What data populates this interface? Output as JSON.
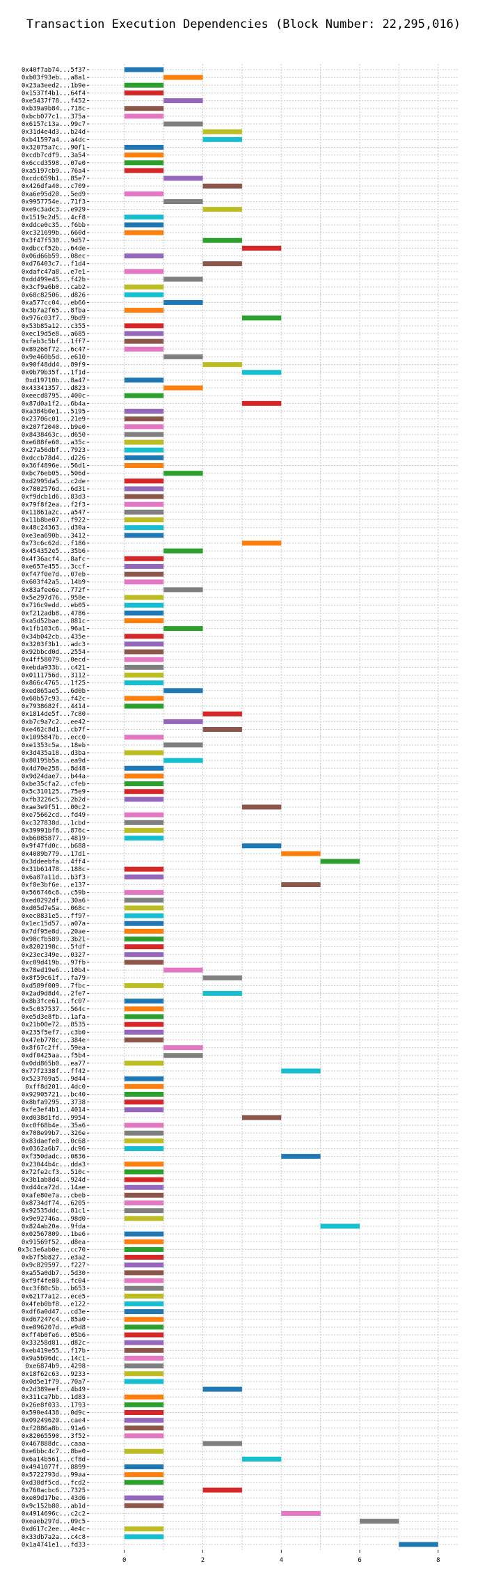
{
  "chart_data": {
    "type": "bar",
    "orientation": "horizontal",
    "title": "Transaction Execution Dependencies (Block Number: 22,295,016)",
    "xlabel": "",
    "ylabel": "",
    "xlim": [
      -0.9,
      8.5
    ],
    "xticks": [
      0,
      2,
      4,
      6,
      8
    ],
    "grid": true,
    "bar_colors": [
      "#1f77b4",
      "#ff7f0e",
      "#2ca02c",
      "#d62728",
      "#9467bd",
      "#8c564b",
      "#e377c2",
      "#7f7f7f",
      "#bcbd22",
      "#17becf"
    ],
    "bars": [
      [
        "0x40f7ab74...5f37",
        0,
        1
      ],
      [
        "0xb03f93eb...a8a1",
        1,
        2
      ],
      [
        "0x23a3eed2...1b9e",
        0,
        1
      ],
      [
        "0x1537f4b1...64f4",
        0,
        1
      ],
      [
        "0xe5437f78...f452",
        1,
        2
      ],
      [
        "0xb39a9b84...718c",
        0,
        1
      ],
      [
        "0xbcb077c1...375a",
        0,
        1
      ],
      [
        "0x6157c13a...99c7",
        1,
        2
      ],
      [
        "0x31d4e4d3...b24d",
        2,
        3
      ],
      [
        "0xb41597a4...a4dc",
        2,
        3
      ],
      [
        "0x32075a7c...90f1",
        0,
        1
      ],
      [
        "0xcdb7cdf9...3a54",
        0,
        1
      ],
      [
        "0x6ccd3598...07e0",
        0,
        1
      ],
      [
        "0xa5197cb9...76a4",
        0,
        1
      ],
      [
        "0xcdc659b1...85e7",
        1,
        2
      ],
      [
        "0x426dfa40...c709",
        2,
        3
      ],
      [
        "0xa6e95d20...5ed9",
        0,
        1
      ],
      [
        "0x9957754e...71f3",
        1,
        2
      ],
      [
        "0xe9c3adc3...e929",
        2,
        3
      ],
      [
        "0x1519c2d5...4cf8",
        0,
        1
      ],
      [
        "0xddce0c35...f6bb",
        0,
        1
      ],
      [
        "0xc321699b...660d",
        0,
        1
      ],
      [
        "0x3f47f530...9d57",
        2,
        3
      ],
      [
        "0xdbccf52b...64de",
        3,
        4
      ],
      [
        "0x06d66b59...08ec",
        0,
        1
      ],
      [
        "0xd76403c7...f1d4",
        2,
        3
      ],
      [
        "0xdafc47a8...e7e1",
        0,
        1
      ],
      [
        "0xdd499e45...f42b",
        1,
        2
      ],
      [
        "0x3cf9a6b0...cab2",
        0,
        1
      ],
      [
        "0x68c82506...d826",
        0,
        1
      ],
      [
        "0xa577cc04...eb66",
        1,
        2
      ],
      [
        "0x3b7a2f65...8fba",
        0,
        1
      ],
      [
        "0x976c03f7...9bd9",
        3,
        4
      ],
      [
        "0x53b85a12...c355",
        0,
        1
      ],
      [
        "0xec19d5e8...a685",
        0,
        1
      ],
      [
        "0xfeb3c5bf...1ff7",
        0,
        1
      ],
      [
        "0x89266f72...6c47",
        0,
        1
      ],
      [
        "0x9e460b5d...e610",
        1,
        2
      ],
      [
        "0x90f48dd4...89f9",
        2,
        3
      ],
      [
        "0x0b79b35f...1f1d",
        3,
        4
      ],
      [
        "0xd19710b...8a47",
        0,
        1
      ],
      [
        "0x43341357...d823",
        1,
        2
      ],
      [
        "0xeecd8795...400c",
        0,
        1
      ],
      [
        "0x87d0a1f2...6b4a",
        3,
        4
      ],
      [
        "0xa384b0e1...5195",
        0,
        1
      ],
      [
        "0x23706c01...21e9",
        0,
        1
      ],
      [
        "0x207f2040...b9e0",
        0,
        1
      ],
      [
        "0x8438463c...d650",
        0,
        1
      ],
      [
        "0xe688fe60...a35c",
        0,
        1
      ],
      [
        "0x27a56dbf...7923",
        0,
        1
      ],
      [
        "0xdccb78d4...d226",
        0,
        1
      ],
      [
        "0x36f4896e...56d1",
        0,
        1
      ],
      [
        "0xbc76eb05...506d",
        1,
        2
      ],
      [
        "0xd2995da5...c2de",
        0,
        1
      ],
      [
        "0x7802576d...6d31",
        0,
        1
      ],
      [
        "0xf9dcb1d6...83d3",
        0,
        1
      ],
      [
        "0x79f8f2ea...f2f3",
        0,
        1
      ],
      [
        "0x11861a2c...a547",
        0,
        1
      ],
      [
        "0x11b8be07...f922",
        0,
        1
      ],
      [
        "0x48c24363...d30a",
        0,
        1
      ],
      [
        "0xe3ea690b...3412",
        0,
        1
      ],
      [
        "0x73c6c62d...f186",
        3,
        4
      ],
      [
        "0x454352e5...35b6",
        1,
        2
      ],
      [
        "0x4f36acf4...8afc",
        0,
        1
      ],
      [
        "0xe657e455...3ccf",
        0,
        1
      ],
      [
        "0xf47f0e7d...07eb",
        0,
        1
      ],
      [
        "0x603f42a5...14b9",
        0,
        1
      ],
      [
        "0x83afee6e...772f",
        1,
        2
      ],
      [
        "0x5e297d76...958e",
        0,
        1
      ],
      [
        "0x716c9edd...eb05",
        0,
        1
      ],
      [
        "0xf212adb8...4786",
        0,
        1
      ],
      [
        "0xa5d52bae...881c",
        0,
        1
      ],
      [
        "0x1fb103c6...96a1",
        1,
        2
      ],
      [
        "0x34b042cb...435e",
        0,
        1
      ],
      [
        "0x3203f3b1...adc3",
        0,
        1
      ],
      [
        "0x92bbcd0d...2554",
        0,
        1
      ],
      [
        "0x4ff58079...0ecd",
        0,
        1
      ],
      [
        "0xebda933b...c421",
        0,
        1
      ],
      [
        "0x0111756d...3112",
        0,
        1
      ],
      [
        "0x866c4765...1f25",
        0,
        1
      ],
      [
        "0xed865ae5...6d0b",
        1,
        2
      ],
      [
        "0x60b57c93...f42c",
        0,
        1
      ],
      [
        "0x7938682f...4414",
        0,
        1
      ],
      [
        "0x1814de5f...7c80",
        2,
        3
      ],
      [
        "0xb7c9a7c2...ee42",
        1,
        2
      ],
      [
        "0xe462c8d1...cb7f",
        2,
        3
      ],
      [
        "0x1095847b...ecc0",
        0,
        1
      ],
      [
        "0xe1353c5a...18eb",
        1,
        2
      ],
      [
        "0x3d435a18...d3ba",
        0,
        1
      ],
      [
        "0x80195b5a...ea9d",
        1,
        2
      ],
      [
        "0x4d70e258...8d48",
        0,
        1
      ],
      [
        "0x9d24dae7...b44a",
        0,
        1
      ],
      [
        "0xbe35cfa2...cfeb",
        0,
        1
      ],
      [
        "0x5c310125...75e9",
        0,
        1
      ],
      [
        "0xfb3226c5...2b2d",
        0,
        1
      ],
      [
        "0xae3e9f51...00c2",
        3,
        4
      ],
      [
        "0xe75662cd...fd49",
        0,
        1
      ],
      [
        "0xc327838d...1cbd",
        0,
        1
      ],
      [
        "0x39991bf8...876c",
        0,
        1
      ],
      [
        "0xb6085877...4819",
        0,
        1
      ],
      [
        "0x9f47fd0c...b688",
        3,
        4
      ],
      [
        "0x4089b779...17d1",
        4,
        5
      ],
      [
        "0x3ddeebfa...4ff4",
        5,
        6
      ],
      [
        "0x31b61478...188c",
        0,
        1
      ],
      [
        "0x6a87a11d...b3f3",
        0,
        1
      ],
      [
        "0xf8e3bf6e...e137",
        4,
        5
      ],
      [
        "0x566746c8...c59b",
        0,
        1
      ],
      [
        "0xed0292df...30a6",
        0,
        1
      ],
      [
        "0xd05d7e5a...068c",
        0,
        1
      ],
      [
        "0xec8831e5...ff97",
        0,
        1
      ],
      [
        "0x1ec15d57...a07a",
        0,
        1
      ],
      [
        "0x7df95e8d...20ae",
        0,
        1
      ],
      [
        "0x98cfb589...3b21",
        0,
        1
      ],
      [
        "0x8202198c...5fdf",
        0,
        1
      ],
      [
        "0x23ec349e...0327",
        0,
        1
      ],
      [
        "0xc09d419b...97fb",
        0,
        1
      ],
      [
        "0x78ed19e6...10b4",
        1,
        2
      ],
      [
        "0x8f59c61f...fa79",
        2,
        3
      ],
      [
        "0xd589f009...7fbc",
        0,
        1
      ],
      [
        "0x2ad9d8d4...2fe7",
        2,
        3
      ],
      [
        "0x8b3fce61...fc07",
        0,
        1
      ],
      [
        "0x5c037537...564c",
        0,
        1
      ],
      [
        "0xe5d3e8fb...1afa",
        0,
        1
      ],
      [
        "0x21b00e72...8535",
        0,
        1
      ],
      [
        "0x235f5ef7...c3b0",
        0,
        1
      ],
      [
        "0x47eb778c...384e",
        0,
        1
      ],
      [
        "0x8f67c2ff...59ea",
        1,
        2
      ],
      [
        "0xdf0425aa...f5b4",
        1,
        2
      ],
      [
        "0x0dd865b0...ea77",
        0,
        1
      ],
      [
        "0x77f2338f...ff42",
        4,
        5
      ],
      [
        "0x523769a5...9d44",
        0,
        1
      ],
      [
        "0xff8d201...4dc0",
        0,
        1
      ],
      [
        "0x92905721...bc40",
        0,
        1
      ],
      [
        "0x8bfa9295...3738",
        0,
        1
      ],
      [
        "0xfe3ef4b1...4014",
        0,
        1
      ],
      [
        "0xd038d1fd...9954",
        3,
        4
      ],
      [
        "0xc0f68b4e...35a6",
        0,
        1
      ],
      [
        "0x708e99b7...326e",
        0,
        1
      ],
      [
        "0x83daefe0...0c68",
        0,
        1
      ],
      [
        "0x0362a6b7...dc96",
        0,
        1
      ],
      [
        "0xf350dadc...0836",
        4,
        5
      ],
      [
        "0x23044b4c...dda3",
        0,
        1
      ],
      [
        "0x72fe2cf3...510c",
        0,
        1
      ],
      [
        "0x3b1ab8d4...924d",
        0,
        1
      ],
      [
        "0xd44ca72d...14ae",
        0,
        1
      ],
      [
        "0xafe80e7a...cbeb",
        0,
        1
      ],
      [
        "0x8734df74...6205",
        0,
        1
      ],
      [
        "0x92535ddc...81c1",
        0,
        1
      ],
      [
        "0x9e92746a...98d0",
        0,
        1
      ],
      [
        "0x824ab20a...9fda",
        5,
        6
      ],
      [
        "0x02567809...1be6",
        0,
        1
      ],
      [
        "0x91569f52...d8ea",
        0,
        1
      ],
      [
        "0x3c3e6ab0e...cc70",
        0,
        1
      ],
      [
        "0xb7f5b827...e3a2",
        0,
        1
      ],
      [
        "0x9c829597...f227",
        0,
        1
      ],
      [
        "0xa55a0db7...5d30",
        0,
        1
      ],
      [
        "0xf9f4fe80...fc04",
        0,
        1
      ],
      [
        "0xc3f80c5b...b653",
        0,
        1
      ],
      [
        "0x62177a12...ece5",
        0,
        1
      ],
      [
        "0x4feb0bf8...e122",
        0,
        1
      ],
      [
        "0xdf6a0d47...cd3e",
        0,
        1
      ],
      [
        "0xd67247c4...85a0",
        0,
        1
      ],
      [
        "0xe896207d...e9d8",
        0,
        1
      ],
      [
        "0xff4b0fe6...05b6",
        0,
        1
      ],
      [
        "0x33258d81...d82c",
        0,
        1
      ],
      [
        "0xeb419e55...f17b",
        0,
        1
      ],
      [
        "0x9a5b96dc...14c1",
        0,
        1
      ],
      [
        "0xe6874b9...4298",
        0,
        1
      ],
      [
        "0x18f62c63...9233",
        0,
        1
      ],
      [
        "0x0d5e1f79...70a7",
        0,
        1
      ],
      [
        "0x2d389eef...4b49",
        2,
        3
      ],
      [
        "0x311ca7bb...1d83",
        0,
        1
      ],
      [
        "0x26e8f033...1793",
        0,
        1
      ],
      [
        "0x590e4438...0d9c",
        0,
        1
      ],
      [
        "0x09249620...cae4",
        0,
        1
      ],
      [
        "0xf2886a8b...91a6",
        0,
        1
      ],
      [
        "0x82065590...3f52",
        0,
        1
      ],
      [
        "0x467888dc...caaa",
        2,
        3
      ],
      [
        "0xe6bbc4c7...8be0",
        0,
        1
      ],
      [
        "0x6a14b561...cf8d",
        3,
        4
      ],
      [
        "0x4941077f...8899",
        0,
        1
      ],
      [
        "0x5722793d...99aa",
        0,
        1
      ],
      [
        "0xd38df5cd...fcd2",
        0,
        1
      ],
      [
        "0x760acbc6...7325",
        2,
        3
      ],
      [
        "0xe09d17be...43d6",
        0,
        1
      ],
      [
        "0x9c152b80...ab1d",
        0,
        1
      ],
      [
        "0x4914696c...c2c2",
        4,
        5
      ],
      [
        "0xeaeb297d...09c5",
        6,
        7
      ],
      [
        "0xd617c2ee...4e4c",
        0,
        1
      ],
      [
        "0x33db7a2a...c4c8",
        0,
        1
      ],
      [
        "0x1a4741e1...fd33",
        7,
        8
      ]
    ]
  }
}
